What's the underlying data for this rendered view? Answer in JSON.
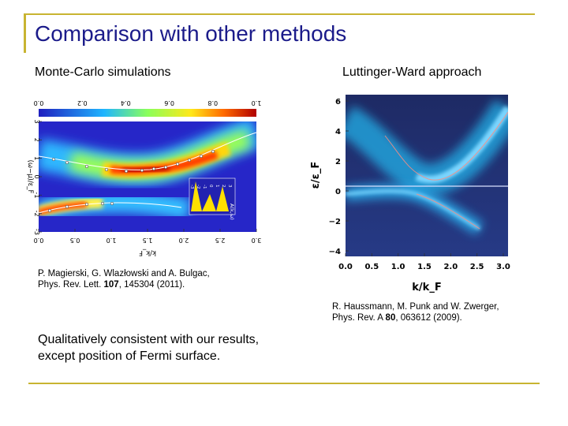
{
  "slide": {
    "title": "Comparison with other methods",
    "left_heading": "Monte-Carlo simulations",
    "right_heading": "Luttinger-Ward approach",
    "left_ref_line1": "P. Magierski, G. Wlazłowski and A. Bulgac,",
    "left_ref_line2_pre": "Phys. Rev. Lett. ",
    "left_ref_vol": "107",
    "left_ref_line2_post": ", 145304 (2011).",
    "right_ref_line1": "R. Haussmann, M. Punk and W. Zwerger,",
    "right_ref_line2_pre": "Phys. Rev. A ",
    "right_ref_vol": "80",
    "right_ref_line2_post": ", 063612 (2009).",
    "conclusion_line1": "Qualitatively consistent with our results,",
    "conclusion_line2": "except position of Fermi surface."
  },
  "colors": {
    "frame": "#c8b431",
    "title": "#1b1b8a"
  },
  "fig_left": {
    "colorbar_ticks": [
      "0.0",
      "0.2",
      "0.4",
      "0.6",
      "0.8",
      "1.0"
    ],
    "y_ticks": [
      "3",
      "2",
      "1",
      "0",
      "-1",
      "-2",
      "-3"
    ],
    "y_label": "(ω−μ)/ε_F",
    "x_ticks": [
      "0.0",
      "0.5",
      "1.0",
      "1.5",
      "2.0",
      "2.5",
      "3.0"
    ],
    "x_label": "k/k_F",
    "inset_ticks": [
      "-3",
      "-2",
      "-1",
      "0",
      "1",
      "2",
      "3"
    ],
    "inset_label": "A(k,ω)"
  },
  "fig_right": {
    "y_ticks": [
      "6",
      "4",
      "2",
      "0",
      "−2",
      "−4"
    ],
    "y_label": "ε/ε_F",
    "x_ticks": [
      "0.0",
      "0.5",
      "1.0",
      "1.5",
      "2.0",
      "2.5",
      "3.0"
    ],
    "x_label": "k/k_F"
  }
}
